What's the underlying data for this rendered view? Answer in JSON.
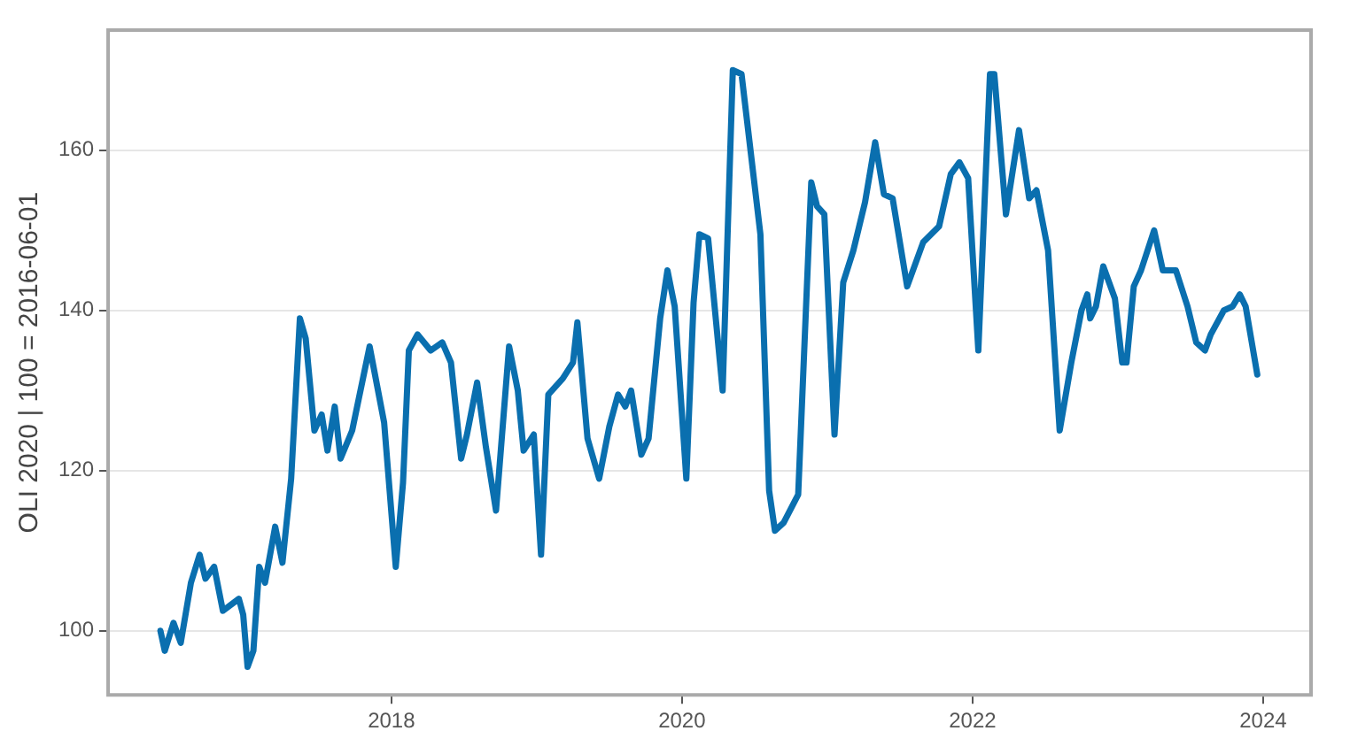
{
  "chart_data": {
    "type": "line",
    "ylabel": "OLI 2020 | 100 = 2016-06-01",
    "x": [
      2016.41,
      2016.44,
      2016.5,
      2016.55,
      2016.62,
      2016.68,
      2016.72,
      2016.78,
      2016.84,
      2016.95,
      2016.98,
      2017.01,
      2017.05,
      2017.09,
      2017.13,
      2017.2,
      2017.25,
      2017.31,
      2017.37,
      2017.41,
      2017.47,
      2017.52,
      2017.56,
      2017.61,
      2017.65,
      2017.73,
      2017.85,
      2017.95,
      2017.99,
      2018.03,
      2018.08,
      2018.12,
      2018.18,
      2018.27,
      2018.35,
      2018.41,
      2018.48,
      2018.52,
      2018.59,
      2018.65,
      2018.72,
      2018.81,
      2018.87,
      2018.91,
      2018.98,
      2019.03,
      2019.08,
      2019.18,
      2019.25,
      2019.28,
      2019.35,
      2019.43,
      2019.5,
      2019.56,
      2019.61,
      2019.65,
      2019.72,
      2019.77,
      2019.85,
      2019.9,
      2019.95,
      2020.03,
      2020.08,
      2020.12,
      2020.18,
      2020.28,
      2020.35,
      2020.41,
      2020.54,
      2020.6,
      2020.64,
      2020.7,
      2020.8,
      2020.89,
      2020.93,
      2020.98,
      2021.05,
      2021.11,
      2021.18,
      2021.26,
      2021.33,
      2021.39,
      2021.45,
      2021.55,
      2021.66,
      2021.77,
      2021.85,
      2021.91,
      2021.97,
      2022.04,
      2022.12,
      2022.15,
      2022.23,
      2022.32,
      2022.39,
      2022.44,
      2022.52,
      2022.6,
      2022.68,
      2022.75,
      2022.79,
      2022.81,
      2022.85,
      2022.9,
      2022.98,
      2023.03,
      2023.06,
      2023.11,
      2023.16,
      2023.25,
      2023.31,
      2023.4,
      2023.48,
      2023.54,
      2023.6,
      2023.64,
      2023.73,
      2023.79,
      2023.84,
      2023.88,
      2023.96
    ],
    "series": [
      {
        "color": "#0a6faf",
        "values": [
          100,
          97.5,
          101,
          98.5,
          106,
          109.5,
          106.5,
          108,
          102.5,
          104,
          102,
          95.5,
          97.5,
          108,
          106,
          113,
          108.5,
          119,
          139,
          136.5,
          125,
          127,
          122.5,
          128,
          121.5,
          125,
          135.5,
          126,
          117,
          108,
          118.5,
          135,
          137,
          135,
          136,
          133.5,
          121.5,
          124.5,
          131,
          123,
          115,
          135.5,
          130,
          122.5,
          124.5,
          109.5,
          129.5,
          131.5,
          133.5,
          138.5,
          124,
          119,
          125.5,
          129.5,
          128,
          130,
          122,
          124,
          139,
          145,
          140.5,
          119,
          141,
          149.5,
          149,
          130,
          170,
          169.5,
          149.5,
          117.5,
          112.5,
          113.5,
          117,
          156,
          153,
          152,
          124.5,
          143.5,
          147.5,
          153.5,
          161,
          154.5,
          154,
          143,
          148.5,
          150.5,
          157,
          158.5,
          156.5,
          135,
          169.5,
          169.5,
          152,
          162.5,
          154,
          155,
          147.5,
          125,
          133.5,
          140,
          142,
          139,
          140.5,
          145.5,
          141.5,
          133.5,
          133.5,
          143,
          145,
          150,
          145,
          145,
          140.5,
          136,
          135,
          137,
          140,
          140.5,
          142,
          140.5,
          132
        ]
      }
    ],
    "xlim": [
      2016.05,
      2024.33
    ],
    "xticks": [
      2018,
      2020,
      2022,
      2024
    ],
    "ylim": [
      92,
      175
    ],
    "yticks": [
      100,
      120,
      140,
      160
    ],
    "grid": "y",
    "legend": false,
    "marker": "none",
    "line_style": "solid"
  }
}
